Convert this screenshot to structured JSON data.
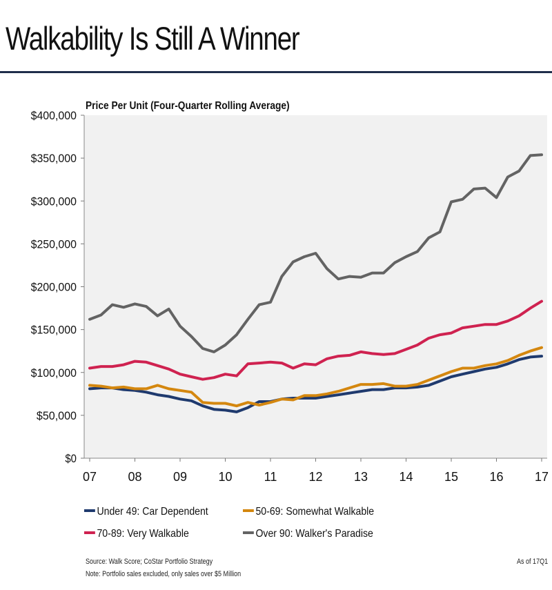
{
  "page": {
    "title": "Walkability Is Still A Winner",
    "source": "Source: Walk Score; CoStar Portfolio Strategy",
    "note": "Note: Portfolio sales excluded, only sales over $5 Million",
    "as_of": "As of 17Q1"
  },
  "chart_data": {
    "type": "line",
    "title": "Price Per Unit (Four-Quarter Rolling Average)",
    "xlabel": "",
    "ylabel": "",
    "x_tick_labels": [
      "07",
      "08",
      "09",
      "10",
      "11",
      "12",
      "13",
      "14",
      "15",
      "16",
      "17"
    ],
    "x_range": [
      0,
      10
    ],
    "ylim": [
      0,
      400000
    ],
    "y_ticks": [
      0,
      50000,
      100000,
      150000,
      200000,
      250000,
      300000,
      350000,
      400000
    ],
    "y_tick_labels": [
      "$0",
      "$50,000",
      "$100,000",
      "$150,000",
      "$200,000",
      "$250,000",
      "$300,000",
      "$350,000",
      "$400,000"
    ],
    "grid": false,
    "plot_background": "#f1f1f1",
    "legend_position": "bottom",
    "series": [
      {
        "name": "Under 49: Car Dependent",
        "color": "#1f3a6e",
        "values": [
          81000,
          82000,
          82000,
          80000,
          79000,
          77000,
          74000,
          72000,
          69000,
          67000,
          61000,
          57000,
          56000,
          54000,
          59000,
          66000,
          66000,
          69000,
          70000,
          70000,
          70000,
          72000,
          74000,
          76000,
          78000,
          80000,
          80000,
          82000,
          82000,
          83000,
          85000,
          90000,
          95000,
          98000,
          101000,
          104000,
          106000,
          110000,
          115000,
          118000,
          119000
        ]
      },
      {
        "name": "50-69: Somewhat Walkable",
        "color": "#d4870f",
        "values": [
          85000,
          84000,
          82000,
          83000,
          81000,
          81000,
          85000,
          81000,
          79000,
          77000,
          65000,
          64000,
          64000,
          61000,
          65000,
          62000,
          65000,
          69000,
          68000,
          73000,
          73000,
          75000,
          78000,
          82000,
          86000,
          86000,
          87000,
          84000,
          84000,
          86000,
          91000,
          96000,
          101000,
          105000,
          105000,
          108000,
          110000,
          114000,
          120000,
          125000,
          129000
        ]
      },
      {
        "name": "70-89: Very Walkable",
        "color": "#cf2250",
        "values": [
          105000,
          107000,
          107000,
          109000,
          113000,
          112000,
          108000,
          104000,
          98000,
          95000,
          92000,
          94000,
          98000,
          96000,
          110000,
          111000,
          112000,
          111000,
          105000,
          110000,
          109000,
          116000,
          119000,
          120000,
          124000,
          122000,
          121000,
          122000,
          127000,
          132000,
          140000,
          144000,
          146000,
          152000,
          154000,
          156000,
          156000,
          160000,
          166000,
          175000,
          183000
        ]
      },
      {
        "name": "Over 90: Walker's Paradise",
        "color": "#636363",
        "values": [
          162000,
          167000,
          179000,
          176000,
          180000,
          177000,
          166000,
          174000,
          154000,
          142000,
          128000,
          124000,
          132000,
          144000,
          162000,
          179000,
          182000,
          212000,
          229000,
          235000,
          239000,
          221000,
          209000,
          212000,
          211000,
          216000,
          216000,
          228000,
          235000,
          241000,
          257000,
          264000,
          299000,
          302000,
          314000,
          315000,
          304000,
          328000,
          335000,
          353000,
          354000
        ]
      }
    ]
  }
}
